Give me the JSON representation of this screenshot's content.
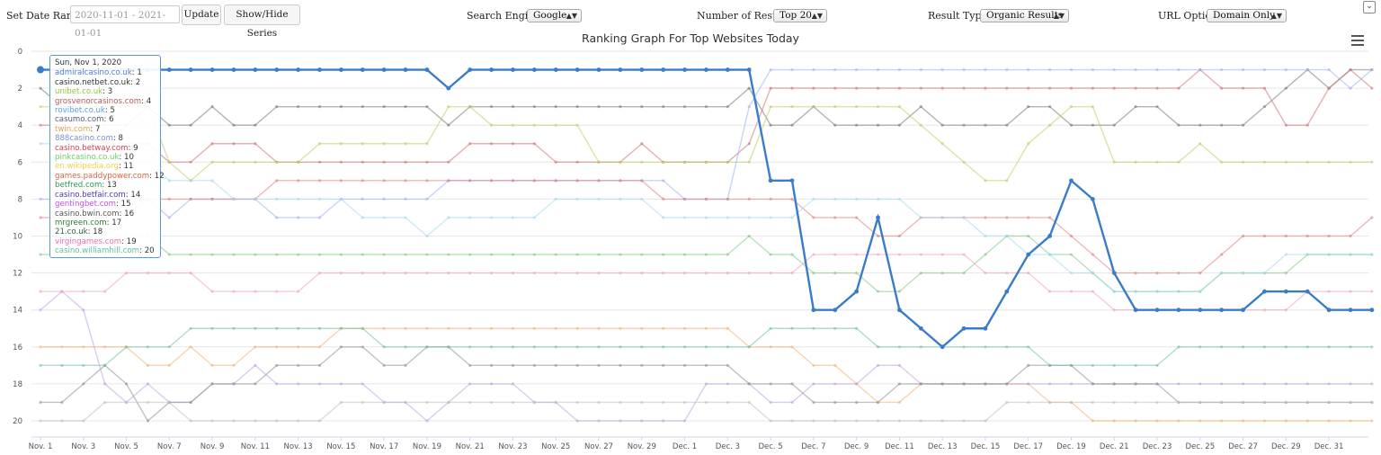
{
  "toolbar": {
    "date_range_label": "Set Date Range :",
    "date_range_value": "2020-11-01 - 2021-01-01",
    "update_label": "Update",
    "show_hide_label": "Show/Hide Series",
    "search_engine_label": "Search Engine:",
    "search_engine_value": "Google",
    "num_results_label": "Number of Results:",
    "num_results_value": "Top 20",
    "result_types_label": "Result Types:",
    "result_types_value": "Organic Results",
    "url_option_label": "URL Option:",
    "url_option_value": "Domain Only",
    "collapse_icon": "chevron-down-icon",
    "menu_icon": "hamburger-menu-icon"
  },
  "tooltip": {
    "date": "Sun, Nov 1, 2020",
    "rows": [
      {
        "name": "admiralcasino.co.uk",
        "rank": "1",
        "color": "#4a7fd0"
      },
      {
        "name": "casino.netbet.co.uk",
        "rank": "2",
        "color": "#333333"
      },
      {
        "name": "unibet.co.uk",
        "rank": "3",
        "color": "#8cc63f"
      },
      {
        "name": "grosvenorcasinos.com",
        "rank": "4",
        "color": "#b05a5a"
      },
      {
        "name": "rovibet.co.uk",
        "rank": "5",
        "color": "#5aa0e0"
      },
      {
        "name": "casumo.com",
        "rank": "6",
        "color": "#5b5b7a"
      },
      {
        "name": "twin.com",
        "rank": "7",
        "color": "#e0a050"
      },
      {
        "name": "888casino.com",
        "rank": "8",
        "color": "#7b8ee0"
      },
      {
        "name": "casino.betway.com",
        "rank": "9",
        "color": "#d04050"
      },
      {
        "name": "pinkcasino.co.uk",
        "rank": "10",
        "color": "#6ad06a"
      },
      {
        "name": "en.wikipedia.org",
        "rank": "11",
        "color": "#f0d040"
      },
      {
        "name": "games.paddypower.com",
        "rank": "12",
        "color": "#e06040"
      },
      {
        "name": "betfred.com",
        "rank": "13",
        "color": "#2a9a5a"
      },
      {
        "name": "casino.betfair.com",
        "rank": "14",
        "color": "#4a3ab0"
      },
      {
        "name": "gentingbet.com",
        "rank": "15",
        "color": "#c050e0"
      },
      {
        "name": "casino.bwin.com",
        "rank": "16",
        "color": "#555555"
      },
      {
        "name": "mrgreen.com",
        "rank": "17",
        "color": "#2f7a2f"
      },
      {
        "name": "21.co.uk",
        "rank": "18",
        "color": "#2a6a3a"
      },
      {
        "name": "virgingames.com",
        "rank": "19",
        "color": "#e070b0"
      },
      {
        "name": "casino.williamhill.com",
        "rank": "20",
        "color": "#60c0a0"
      }
    ]
  },
  "chart_data": {
    "type": "line",
    "title": "Ranking Graph For Top Websites Today",
    "xlabel": "",
    "ylabel": "",
    "ylim": [
      0,
      20
    ],
    "y_reversed": true,
    "y_ticks": [
      "0",
      "2",
      "4",
      "6",
      "8",
      "10",
      "12",
      "14",
      "16",
      "18",
      "20"
    ],
    "x_ticks": [
      "Nov. 1",
      "Nov. 3",
      "Nov. 5",
      "Nov. 7",
      "Nov. 9",
      "Nov. 11",
      "Nov. 13",
      "Nov. 15",
      "Nov. 17",
      "Nov. 19",
      "Nov. 21",
      "Nov. 23",
      "Nov. 25",
      "Nov. 27",
      "Nov. 29",
      "Dec. 1",
      "Dec. 3",
      "Dec. 5",
      "Dec. 7",
      "Dec. 9",
      "Dec. 11",
      "Dec. 13",
      "Dec. 15",
      "Dec. 17",
      "Dec. 19",
      "Dec. 21",
      "Dec. 23",
      "Dec. 25",
      "Dec. 27",
      "Dec. 29",
      "Dec. 31"
    ],
    "highlighted_series": {
      "name": "admiralcasino.co.uk",
      "color": "#3a7cc8",
      "values": [
        1,
        1,
        1,
        1,
        1,
        1,
        1,
        1,
        1,
        1,
        1,
        1,
        1,
        1,
        1,
        1,
        1,
        1,
        1,
        2,
        1,
        1,
        1,
        1,
        1,
        1,
        1,
        1,
        1,
        1,
        1,
        1,
        1,
        1,
        7,
        7,
        14,
        14,
        13,
        9,
        14,
        15,
        16,
        15,
        15,
        13,
        11,
        10,
        7,
        8,
        12,
        14,
        14,
        14,
        14,
        14,
        14,
        13,
        13,
        13,
        14,
        14,
        14
      ]
    },
    "background_series": [
      {
        "color": "#777777",
        "values": [
          2,
          3,
          4,
          4,
          4,
          3,
          4,
          4,
          3,
          4,
          4,
          3,
          3,
          3,
          3,
          3,
          3,
          3,
          3,
          4,
          3,
          3,
          3,
          3,
          3,
          3,
          3,
          3,
          3,
          3,
          3,
          3,
          3,
          2,
          4,
          4,
          3,
          4,
          4,
          4,
          4,
          3,
          4,
          4,
          4,
          4,
          3,
          3,
          4,
          4,
          4,
          3,
          3,
          4,
          4,
          4,
          4,
          3,
          2,
          1,
          2,
          1,
          1
        ]
      },
      {
        "color": "#d07070",
        "values": [
          4,
          4,
          5,
          5,
          5,
          5,
          6,
          6,
          5,
          5,
          5,
          6,
          6,
          6,
          6,
          6,
          6,
          6,
          6,
          6,
          5,
          5,
          5,
          5,
          6,
          6,
          6,
          6,
          5,
          6,
          6,
          6,
          6,
          5,
          2,
          2,
          2,
          2,
          2,
          2,
          2,
          2,
          2,
          2,
          2,
          2,
          2,
          2,
          2,
          2,
          2,
          2,
          2,
          2,
          1,
          2,
          2,
          2,
          4,
          4,
          2,
          1,
          2
        ]
      },
      {
        "color": "#b8d060",
        "values": [
          3,
          3,
          3,
          3,
          3,
          3,
          6,
          7,
          6,
          6,
          6,
          6,
          6,
          5,
          5,
          5,
          5,
          5,
          5,
          3,
          3,
          4,
          4,
          4,
          4,
          4,
          6,
          6,
          6,
          6,
          6,
          6,
          6,
          6,
          3,
          3,
          3,
          3,
          3,
          3,
          3,
          4,
          5,
          6,
          7,
          7,
          5,
          4,
          3,
          3,
          6,
          6,
          6,
          6,
          5,
          6,
          6,
          6,
          6,
          6,
          6,
          6,
          6
        ]
      },
      {
        "color": "#9ab0f0",
        "values": [
          8,
          8,
          8,
          9,
          8,
          8,
          9,
          8,
          8,
          8,
          8,
          9,
          9,
          9,
          8,
          8,
          8,
          8,
          8,
          7,
          7,
          7,
          7,
          7,
          7,
          7,
          7,
          7,
          7,
          7,
          8,
          8,
          8,
          3,
          1,
          1,
          1,
          1,
          1,
          1,
          1,
          1,
          1,
          1,
          1,
          1,
          1,
          1,
          1,
          1,
          1,
          1,
          1,
          1,
          1,
          1,
          1,
          1,
          1,
          1,
          1,
          2,
          1
        ]
      },
      {
        "color": "#e08080",
        "values": [
          9,
          9,
          9,
          9,
          9,
          8,
          8,
          8,
          8,
          8,
          8,
          7,
          7,
          7,
          7,
          7,
          7,
          7,
          7,
          7,
          7,
          7,
          7,
          7,
          7,
          7,
          7,
          7,
          7,
          8,
          8,
          8,
          8,
          8,
          8,
          8,
          9,
          9,
          9,
          10,
          10,
          9,
          9,
          9,
          9,
          9,
          9,
          9,
          10,
          11,
          12,
          12,
          12,
          12,
          12,
          11,
          10,
          10,
          10,
          10,
          10,
          10,
          9
        ]
      },
      {
        "color": "#80c880",
        "values": [
          11,
          11,
          11,
          11,
          10,
          10,
          11,
          11,
          11,
          11,
          11,
          11,
          11,
          11,
          11,
          11,
          11,
          11,
          11,
          11,
          11,
          11,
          11,
          11,
          11,
          11,
          11,
          11,
          11,
          11,
          11,
          11,
          11,
          10,
          11,
          11,
          12,
          12,
          12,
          13,
          13,
          12,
          12,
          12,
          11,
          10,
          10,
          11,
          11,
          12,
          13,
          13,
          13,
          13,
          13,
          12,
          12,
          12,
          12,
          11,
          11,
          11,
          11
        ]
      },
      {
        "color": "#f0b070",
        "values": [
          16,
          16,
          16,
          16,
          16,
          17,
          17,
          16,
          17,
          17,
          16,
          16,
          16,
          16,
          15,
          15,
          15,
          15,
          15,
          15,
          15,
          15,
          15,
          15,
          15,
          15,
          15,
          15,
          15,
          15,
          15,
          15,
          15,
          16,
          16,
          16,
          17,
          17,
          18,
          19,
          19,
          18,
          18,
          18,
          18,
          18,
          18,
          19,
          19,
          20,
          20,
          20,
          20,
          20,
          20,
          20,
          20,
          20,
          20,
          20,
          20,
          20,
          20
        ]
      },
      {
        "color": "#c0a0e0",
        "values": [
          14,
          13,
          14,
          18,
          19,
          18,
          19,
          19,
          18,
          18,
          17,
          18,
          18,
          18,
          18,
          18,
          19,
          19,
          20,
          19,
          18,
          18,
          18,
          19,
          19,
          20,
          20,
          20,
          20,
          20,
          20,
          18,
          18,
          18,
          19,
          19,
          18,
          18,
          18,
          17,
          17,
          18,
          18,
          18,
          18,
          18,
          18,
          18,
          18,
          18,
          18,
          18,
          18,
          18,
          18,
          18,
          18,
          18,
          18,
          18,
          18,
          18,
          18
        ]
      },
      {
        "color": "#909090",
        "values": [
          19,
          19,
          18,
          17,
          18,
          20,
          19,
          19,
          18,
          18,
          18,
          17,
          17,
          17,
          16,
          16,
          17,
          17,
          16,
          16,
          17,
          17,
          17,
          17,
          17,
          17,
          17,
          17,
          17,
          17,
          17,
          17,
          17,
          18,
          18,
          18,
          19,
          19,
          19,
          19,
          18,
          18,
          18,
          18,
          18,
          18,
          17,
          17,
          17,
          18,
          18,
          18,
          18,
          19,
          19,
          19,
          19,
          19,
          19,
          19,
          19,
          19,
          19
        ]
      },
      {
        "color": "#a0d8f0",
        "values": [
          5,
          5,
          5,
          6,
          6,
          6,
          7,
          7,
          7,
          8,
          8,
          8,
          8,
          8,
          8,
          9,
          9,
          9,
          10,
          9,
          9,
          9,
          9,
          9,
          8,
          8,
          8,
          8,
          8,
          9,
          9,
          9,
          9,
          9,
          9,
          9,
          8,
          8,
          8,
          8,
          8,
          9,
          9,
          9,
          10,
          10,
          11,
          11,
          12,
          12,
          13,
          13,
          13,
          13,
          13,
          12,
          12,
          12,
          11,
          11,
          11,
          11,
          11
        ]
      },
      {
        "color": "#f0a0c0",
        "values": [
          13,
          13,
          13,
          13,
          12,
          12,
          12,
          12,
          13,
          13,
          13,
          13,
          13,
          12,
          12,
          12,
          12,
          12,
          12,
          12,
          12,
          12,
          12,
          12,
          12,
          12,
          12,
          12,
          12,
          12,
          12,
          12,
          12,
          12,
          12,
          12,
          11,
          11,
          11,
          11,
          11,
          11,
          11,
          11,
          12,
          12,
          12,
          13,
          13,
          13,
          14,
          14,
          14,
          14,
          14,
          14,
          14,
          14,
          14,
          13,
          13,
          13,
          13
        ]
      },
      {
        "color": "#70c0a0",
        "values": [
          17,
          17,
          17,
          17,
          16,
          16,
          16,
          15,
          15,
          15,
          15,
          15,
          15,
          15,
          15,
          15,
          16,
          16,
          16,
          16,
          16,
          16,
          16,
          16,
          16,
          16,
          16,
          16,
          16,
          16,
          16,
          16,
          16,
          16,
          15,
          15,
          15,
          15,
          15,
          16,
          16,
          16,
          16,
          16,
          16,
          16,
          16,
          17,
          17,
          17,
          17,
          17,
          17,
          16,
          16,
          16,
          16,
          16,
          16,
          16,
          16,
          16,
          16
        ]
      },
      {
        "color": "#c0c0c0",
        "values": [
          20,
          20,
          20,
          19,
          19,
          19,
          19,
          20,
          20,
          20,
          20,
          20,
          20,
          20,
          19,
          19,
          19,
          19,
          19,
          19,
          19,
          19,
          19,
          19,
          19,
          19,
          19,
          19,
          19,
          19,
          19,
          19,
          19,
          19,
          20,
          20,
          20,
          20,
          20,
          20,
          20,
          20,
          20,
          20,
          20,
          19,
          19,
          19,
          19,
          19,
          19,
          19,
          19,
          19,
          19,
          19,
          19,
          19,
          19,
          19,
          19,
          19,
          19
        ]
      }
    ]
  }
}
